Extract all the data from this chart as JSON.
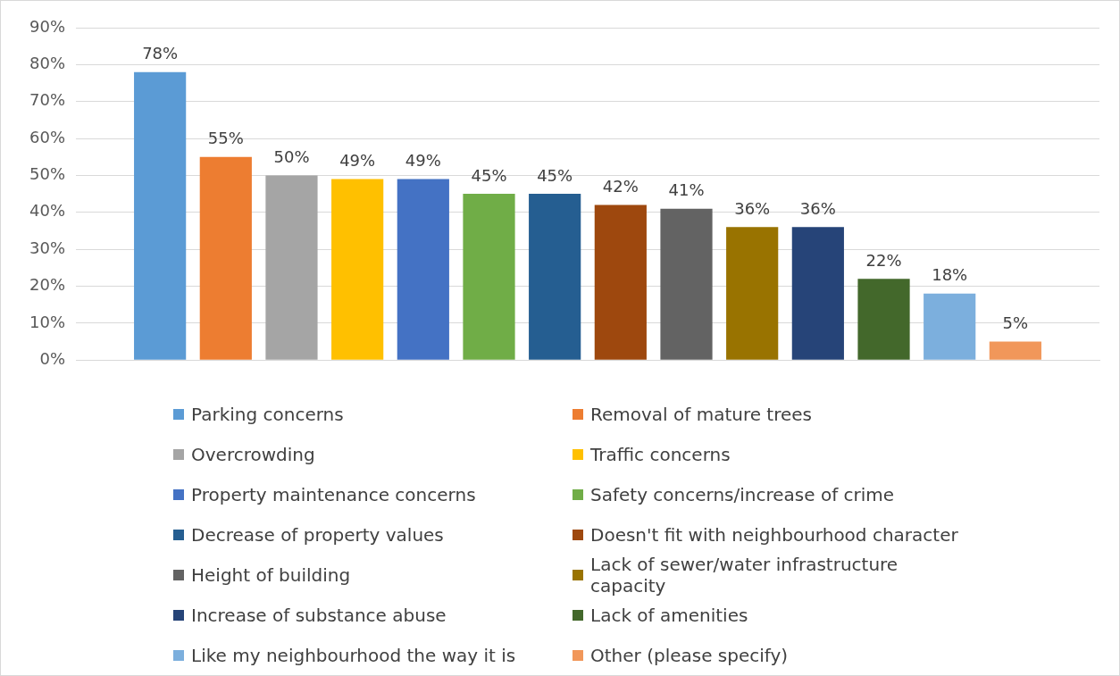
{
  "chart_data": {
    "type": "bar",
    "categories": [
      null
    ],
    "series": [
      {
        "name": "Parking concerns",
        "color": "#5b9bd5",
        "values": [
          78
        ],
        "value_labels": [
          "78%"
        ]
      },
      {
        "name": "Removal of mature trees",
        "color": "#ed7d31",
        "values": [
          55
        ],
        "value_labels": [
          "55%"
        ]
      },
      {
        "name": "Overcrowding",
        "color": "#a5a5a5",
        "values": [
          50
        ],
        "value_labels": [
          "50%"
        ]
      },
      {
        "name": "Traffic concerns",
        "color": "#ffc000",
        "values": [
          49
        ],
        "value_labels": [
          "49%"
        ]
      },
      {
        "name": "Property maintenance concerns",
        "color": "#4472c4",
        "values": [
          49
        ],
        "value_labels": [
          "49%"
        ]
      },
      {
        "name": "Safety concerns/increase of crime",
        "color": "#70ad47",
        "values": [
          45
        ],
        "value_labels": [
          "45%"
        ]
      },
      {
        "name": "Decrease of property values",
        "color": "#255e91",
        "values": [
          45
        ],
        "value_labels": [
          "45%"
        ]
      },
      {
        "name": "Doesn't fit with neighbourhood character",
        "color": "#9e480e",
        "values": [
          42
        ],
        "value_labels": [
          "42%"
        ]
      },
      {
        "name": "Height of building",
        "color": "#636363",
        "values": [
          41
        ],
        "value_labels": [
          "41%"
        ]
      },
      {
        "name": "Lack of sewer/water infrastructure capacity",
        "color": "#997300",
        "values": [
          36
        ],
        "value_labels": [
          "36%"
        ]
      },
      {
        "name": "Increase of substance abuse",
        "color": "#264478",
        "values": [
          36
        ],
        "value_labels": [
          "36%"
        ]
      },
      {
        "name": "Lack of amenities",
        "color": "#43682b",
        "values": [
          22
        ],
        "value_labels": [
          "22%"
        ]
      },
      {
        "name": "Like my neighbourhood the way it is",
        "color": "#7cafdd",
        "values": [
          18
        ],
        "value_labels": [
          "18%"
        ]
      },
      {
        "name": "Other (please specify)",
        "color": "#f1975a",
        "values": [
          5
        ],
        "value_labels": [
          "5%"
        ]
      }
    ],
    "ylim": [
      0,
      90
    ],
    "yticks": [
      {
        "value": 0,
        "label": "0%"
      },
      {
        "value": 10,
        "label": "10%"
      },
      {
        "value": 20,
        "label": "20%"
      },
      {
        "value": 30,
        "label": "30%"
      },
      {
        "value": 40,
        "label": "40%"
      },
      {
        "value": 50,
        "label": "50%"
      },
      {
        "value": 60,
        "label": "60%"
      },
      {
        "value": 70,
        "label": "70%"
      },
      {
        "value": 80,
        "label": "80%"
      },
      {
        "value": 90,
        "label": "90%"
      }
    ],
    "grid": "y",
    "legend": "bottom"
  }
}
